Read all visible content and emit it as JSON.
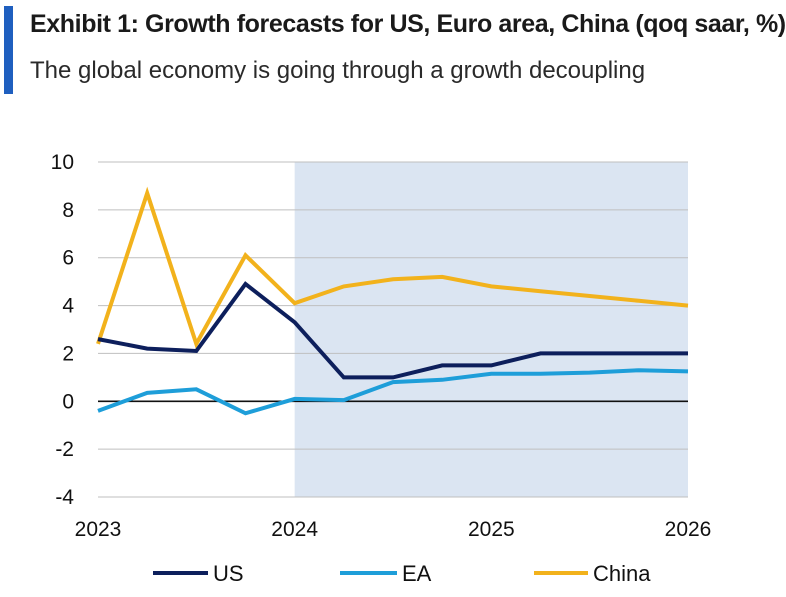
{
  "title": "Exhibit 1: Growth forecasts for US, Euro area, China (qoq saar, %)",
  "subtitle": "The global economy is going through a growth decoupling",
  "chart_data": {
    "type": "line",
    "x": [
      2023.0,
      2023.25,
      2023.5,
      2023.75,
      2024.0,
      2024.25,
      2024.5,
      2024.75,
      2025.0,
      2025.25,
      2025.5,
      2025.75,
      2026.0
    ],
    "series": [
      {
        "name": "US",
        "color": "#0d1f5c",
        "values": [
          2.6,
          2.2,
          2.1,
          4.9,
          3.3,
          1.0,
          1.0,
          1.5,
          1.5,
          2.0,
          2.0,
          2.0,
          2.0
        ]
      },
      {
        "name": "EA",
        "color": "#1e9ed9",
        "values": [
          -0.4,
          0.35,
          0.5,
          -0.5,
          0.1,
          0.05,
          0.8,
          0.9,
          1.15,
          1.15,
          1.2,
          1.3,
          1.25
        ]
      },
      {
        "name": "China",
        "color": "#f2b21c",
        "values": [
          2.4,
          8.7,
          2.4,
          6.1,
          4.1,
          4.8,
          5.1,
          5.2,
          4.8,
          4.6,
          4.4,
          4.2,
          4.0
        ]
      }
    ],
    "xlim": [
      2023,
      2026
    ],
    "ylim": [
      -4,
      10
    ],
    "x_ticks": [
      "2023",
      "2024",
      "2025",
      "2026"
    ],
    "y_ticks": [
      "10",
      "8",
      "6",
      "4",
      "2",
      "0",
      "-2",
      "-4"
    ],
    "forecast_shading": {
      "from": 2024,
      "to": 2026,
      "color": "#dbe5f2"
    },
    "grid": true,
    "legend_position": "bottom"
  }
}
